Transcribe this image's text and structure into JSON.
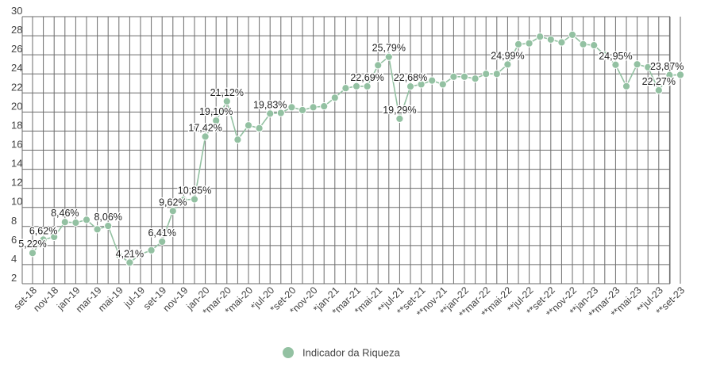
{
  "chart_data": {
    "type": "line",
    "title": "",
    "xlabel": "",
    "ylabel": "",
    "ylim": [
      2,
      30
    ],
    "ytick_step": 2,
    "grid": true,
    "legend_position": "bottom-center",
    "line_color": "#93c1a2",
    "series": [
      {
        "name": "Indicador da Riqueza",
        "values": [
          5.22,
          6.62,
          6.9,
          8.46,
          8.4,
          8.7,
          7.7,
          8.06,
          5.0,
          4.21,
          5.1,
          5.5,
          6.41,
          9.62,
          10.8,
          10.85,
          17.42,
          19.1,
          21.12,
          17.1,
          18.6,
          18.3,
          19.83,
          19.9,
          20.5,
          20.2,
          20.5,
          20.6,
          21.5,
          22.5,
          22.7,
          22.69,
          24.9,
          25.79,
          19.29,
          22.68,
          22.9,
          23.3,
          22.9,
          23.7,
          23.7,
          23.5,
          24.0,
          24.0,
          24.99,
          27.1,
          27.2,
          27.9,
          27.6,
          27.3,
          28.1,
          27.1,
          27.0,
          26.0,
          24.95,
          22.7,
          25.0,
          24.7,
          22.27,
          23.87,
          23.9
        ]
      }
    ],
    "x_tick_labels": [
      "set-18",
      "nov-18",
      "jan-19",
      "mar-19",
      "mai-19",
      "jul-19",
      "set-19",
      "nov-19",
      "jan-20",
      "*mar-20",
      "*mai-20",
      "*jul-20",
      "*set-20",
      "*nov-20",
      "*jan-21",
      "*mar-21",
      "*mai-21",
      "**jul-21",
      "**set-21",
      "**nov-21",
      "**jan-22",
      "**mar-22",
      "**mai-22",
      "**jul-22",
      "**set-22",
      "**nov-22",
      "**jan-23",
      "**mar-23",
      "**mai-23",
      "**jul-23",
      "**set-23"
    ],
    "data_labels": [
      {
        "index": 0,
        "text": "5,22%"
      },
      {
        "index": 1,
        "text": "6,62%"
      },
      {
        "index": 3,
        "text": "8,46%"
      },
      {
        "index": 7,
        "text": "8,06%"
      },
      {
        "index": 9,
        "text": "4,21%"
      },
      {
        "index": 12,
        "text": "6,41%"
      },
      {
        "index": 13,
        "text": "9,62%"
      },
      {
        "index": 15,
        "text": "10,85%"
      },
      {
        "index": 16,
        "text": "17,42%"
      },
      {
        "index": 17,
        "text": "19,10%"
      },
      {
        "index": 18,
        "text": "21,12%"
      },
      {
        "index": 22,
        "text": "19,83%"
      },
      {
        "index": 31,
        "text": "22,69%"
      },
      {
        "index": 33,
        "text": "25,79%"
      },
      {
        "index": 34,
        "text": "19,29%"
      },
      {
        "index": 35,
        "text": "22,68%"
      },
      {
        "index": 44,
        "text": "24,99%"
      },
      {
        "index": 54,
        "text": "24,95%"
      },
      {
        "index": 58,
        "text": "22,27%"
      },
      {
        "index": 59,
        "text": "23,87%"
      }
    ]
  }
}
